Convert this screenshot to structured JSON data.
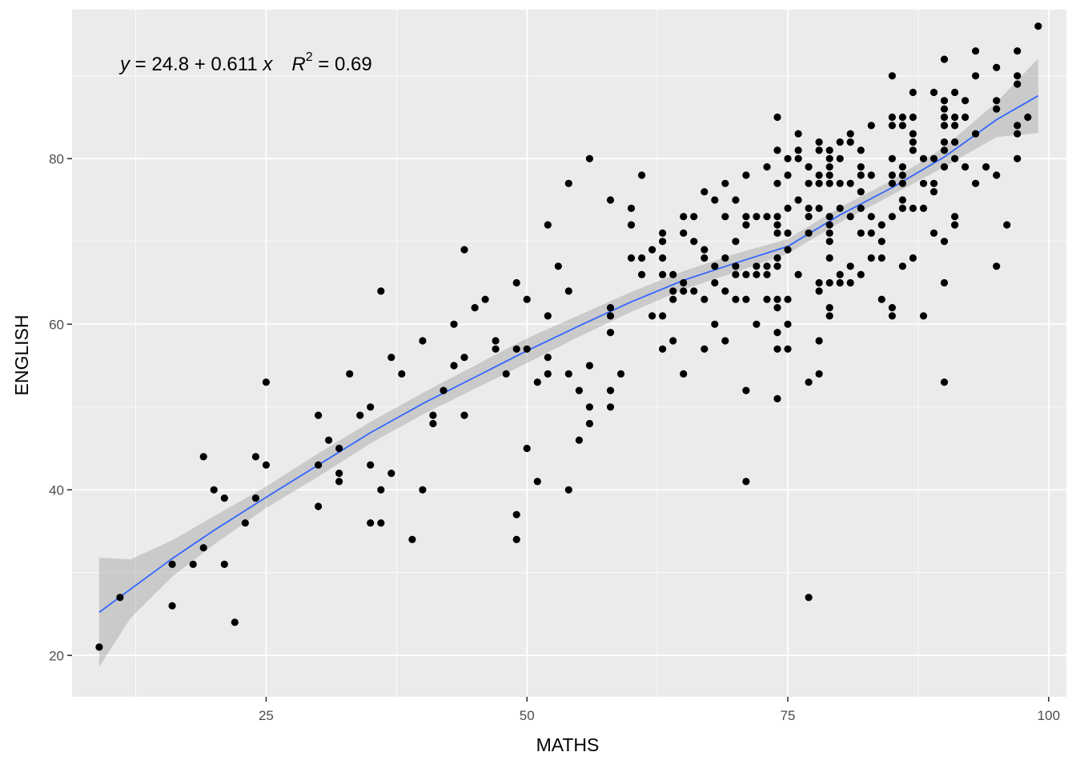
{
  "chart_data": {
    "type": "scatter",
    "xlabel": "MATHS",
    "ylabel": "ENGLISH",
    "xlim": [
      6.4,
      101.7
    ],
    "ylim": [
      15,
      98
    ],
    "x_ticks": [
      25,
      50,
      75,
      100
    ],
    "y_ticks": [
      20,
      40,
      60,
      80
    ],
    "grid": true,
    "annotation": {
      "parts": [
        "y",
        " = 24.8 + 0.611 ",
        "x",
        "R",
        "2",
        " = 0.69"
      ]
    },
    "colors": {
      "panel": "#ebebeb",
      "grid": "#ffffff",
      "points": "#000000",
      "line": "#3366ff",
      "band": "#999999"
    },
    "points": [
      [
        9,
        21
      ],
      [
        11,
        27
      ],
      [
        16,
        31
      ],
      [
        16,
        26
      ],
      [
        18,
        31
      ],
      [
        19,
        44
      ],
      [
        19,
        33
      ],
      [
        20,
        40
      ],
      [
        21,
        39
      ],
      [
        21,
        31
      ],
      [
        22,
        24
      ],
      [
        23,
        36
      ],
      [
        24,
        44
      ],
      [
        24,
        39
      ],
      [
        25,
        43
      ],
      [
        25,
        53
      ],
      [
        30,
        49
      ],
      [
        30,
        43
      ],
      [
        30,
        38
      ],
      [
        31,
        46
      ],
      [
        32,
        45
      ],
      [
        32,
        42
      ],
      [
        32,
        41
      ],
      [
        33,
        54
      ],
      [
        34,
        49
      ],
      [
        35,
        50
      ],
      [
        35,
        43
      ],
      [
        35,
        36
      ],
      [
        36,
        64
      ],
      [
        36,
        40
      ],
      [
        36,
        36
      ],
      [
        37,
        56
      ],
      [
        37,
        42
      ],
      [
        38,
        54
      ],
      [
        39,
        34
      ],
      [
        40,
        58
      ],
      [
        40,
        40
      ],
      [
        41,
        49
      ],
      [
        41,
        48
      ],
      [
        42,
        52
      ],
      [
        43,
        60
      ],
      [
        43,
        55
      ],
      [
        44,
        69
      ],
      [
        44,
        56
      ],
      [
        44,
        49
      ],
      [
        45,
        62
      ],
      [
        46,
        63
      ],
      [
        47,
        58
      ],
      [
        47,
        57
      ],
      [
        48,
        54
      ],
      [
        49,
        65
      ],
      [
        49,
        57
      ],
      [
        49,
        37
      ],
      [
        49,
        34
      ],
      [
        50,
        63
      ],
      [
        50,
        57
      ],
      [
        50,
        45
      ],
      [
        51,
        53
      ],
      [
        51,
        41
      ],
      [
        52,
        72
      ],
      [
        52,
        61
      ],
      [
        52,
        56
      ],
      [
        52,
        54
      ],
      [
        53,
        67
      ],
      [
        54,
        77
      ],
      [
        54,
        64
      ],
      [
        54,
        54
      ],
      [
        54,
        40
      ],
      [
        55,
        52
      ],
      [
        55,
        46
      ],
      [
        56,
        80
      ],
      [
        56,
        55
      ],
      [
        56,
        50
      ],
      [
        56,
        48
      ],
      [
        58,
        75
      ],
      [
        58,
        62
      ],
      [
        58,
        61
      ],
      [
        58,
        59
      ],
      [
        58,
        52
      ],
      [
        58,
        50
      ],
      [
        59,
        54
      ],
      [
        60,
        74
      ],
      [
        60,
        72
      ],
      [
        60,
        68
      ],
      [
        61,
        78
      ],
      [
        61,
        68
      ],
      [
        61,
        66
      ],
      [
        62,
        69
      ],
      [
        62,
        61
      ],
      [
        63,
        71
      ],
      [
        63,
        70
      ],
      [
        63,
        68
      ],
      [
        63,
        66
      ],
      [
        63,
        61
      ],
      [
        63,
        57
      ],
      [
        64,
        66
      ],
      [
        64,
        64
      ],
      [
        64,
        63
      ],
      [
        64,
        58
      ],
      [
        65,
        73
      ],
      [
        65,
        71
      ],
      [
        65,
        65
      ],
      [
        65,
        64
      ],
      [
        65,
        54
      ],
      [
        66,
        73
      ],
      [
        66,
        70
      ],
      [
        66,
        64
      ],
      [
        67,
        76
      ],
      [
        67,
        69
      ],
      [
        67,
        68
      ],
      [
        67,
        63
      ],
      [
        67,
        57
      ],
      [
        68,
        75
      ],
      [
        68,
        67
      ],
      [
        68,
        65
      ],
      [
        68,
        60
      ],
      [
        69,
        77
      ],
      [
        69,
        73
      ],
      [
        69,
        68
      ],
      [
        69,
        64
      ],
      [
        69,
        58
      ],
      [
        70,
        75
      ],
      [
        70,
        70
      ],
      [
        70,
        67
      ],
      [
        70,
        66
      ],
      [
        70,
        63
      ],
      [
        71,
        78
      ],
      [
        71,
        73
      ],
      [
        71,
        72
      ],
      [
        71,
        66
      ],
      [
        71,
        63
      ],
      [
        71,
        52
      ],
      [
        71,
        41
      ],
      [
        72,
        73
      ],
      [
        72,
        67
      ],
      [
        72,
        66
      ],
      [
        72,
        60
      ],
      [
        73,
        79
      ],
      [
        73,
        73
      ],
      [
        73,
        67
      ],
      [
        73,
        66
      ],
      [
        73,
        63
      ],
      [
        74,
        85
      ],
      [
        74,
        81
      ],
      [
        74,
        77
      ],
      [
        74,
        73
      ],
      [
        74,
        72
      ],
      [
        74,
        71
      ],
      [
        74,
        68
      ],
      [
        74,
        67
      ],
      [
        74,
        63
      ],
      [
        74,
        62
      ],
      [
        74,
        59
      ],
      [
        74,
        57
      ],
      [
        74,
        51
      ],
      [
        75,
        80
      ],
      [
        75,
        78
      ],
      [
        75,
        74
      ],
      [
        75,
        71
      ],
      [
        75,
        69
      ],
      [
        75,
        63
      ],
      [
        75,
        60
      ],
      [
        75,
        57
      ],
      [
        76,
        83
      ],
      [
        76,
        81
      ],
      [
        76,
        80
      ],
      [
        76,
        75
      ],
      [
        76,
        66
      ],
      [
        77,
        79
      ],
      [
        77,
        77
      ],
      [
        77,
        74
      ],
      [
        77,
        73
      ],
      [
        77,
        71
      ],
      [
        77,
        53
      ],
      [
        77,
        27
      ],
      [
        78,
        82
      ],
      [
        78,
        81
      ],
      [
        78,
        78
      ],
      [
        78,
        77
      ],
      [
        78,
        74
      ],
      [
        78,
        65
      ],
      [
        78,
        64
      ],
      [
        78,
        58
      ],
      [
        78,
        54
      ],
      [
        79,
        81
      ],
      [
        79,
        80
      ],
      [
        79,
        79
      ],
      [
        79,
        78
      ],
      [
        79,
        77
      ],
      [
        79,
        73
      ],
      [
        79,
        72
      ],
      [
        79,
        71
      ],
      [
        79,
        70
      ],
      [
        79,
        68
      ],
      [
        79,
        65
      ],
      [
        79,
        62
      ],
      [
        79,
        61
      ],
      [
        80,
        82
      ],
      [
        80,
        80
      ],
      [
        80,
        77
      ],
      [
        80,
        74
      ],
      [
        80,
        66
      ],
      [
        80,
        65
      ],
      [
        81,
        83
      ],
      [
        81,
        82
      ],
      [
        81,
        77
      ],
      [
        81,
        73
      ],
      [
        81,
        67
      ],
      [
        81,
        65
      ],
      [
        82,
        81
      ],
      [
        82,
        79
      ],
      [
        82,
        78
      ],
      [
        82,
        76
      ],
      [
        82,
        74
      ],
      [
        82,
        71
      ],
      [
        82,
        66
      ],
      [
        83,
        84
      ],
      [
        83,
        78
      ],
      [
        83,
        73
      ],
      [
        83,
        71
      ],
      [
        83,
        68
      ],
      [
        84,
        72
      ],
      [
        84,
        70
      ],
      [
        84,
        68
      ],
      [
        84,
        63
      ],
      [
        85,
        90
      ],
      [
        85,
        85
      ],
      [
        85,
        84
      ],
      [
        85,
        80
      ],
      [
        85,
        78
      ],
      [
        85,
        77
      ],
      [
        85,
        73
      ],
      [
        85,
        62
      ],
      [
        85,
        61
      ],
      [
        86,
        85
      ],
      [
        86,
        84
      ],
      [
        86,
        79
      ],
      [
        86,
        78
      ],
      [
        86,
        77
      ],
      [
        86,
        75
      ],
      [
        86,
        74
      ],
      [
        86,
        67
      ],
      [
        87,
        88
      ],
      [
        87,
        85
      ],
      [
        87,
        83
      ],
      [
        87,
        82
      ],
      [
        87,
        81
      ],
      [
        87,
        74
      ],
      [
        87,
        68
      ],
      [
        88,
        80
      ],
      [
        88,
        77
      ],
      [
        88,
        74
      ],
      [
        88,
        61
      ],
      [
        89,
        88
      ],
      [
        89,
        80
      ],
      [
        89,
        77
      ],
      [
        89,
        76
      ],
      [
        89,
        71
      ],
      [
        90,
        92
      ],
      [
        90,
        87
      ],
      [
        90,
        86
      ],
      [
        90,
        85
      ],
      [
        90,
        84
      ],
      [
        90,
        82
      ],
      [
        90,
        81
      ],
      [
        90,
        79
      ],
      [
        90,
        70
      ],
      [
        90,
        65
      ],
      [
        90,
        53
      ],
      [
        91,
        88
      ],
      [
        91,
        85
      ],
      [
        91,
        84
      ],
      [
        91,
        82
      ],
      [
        91,
        80
      ],
      [
        91,
        73
      ],
      [
        91,
        72
      ],
      [
        92,
        87
      ],
      [
        92,
        85
      ],
      [
        92,
        79
      ],
      [
        93,
        93
      ],
      [
        93,
        90
      ],
      [
        93,
        83
      ],
      [
        93,
        77
      ],
      [
        94,
        79
      ],
      [
        95,
        91
      ],
      [
        95,
        87
      ],
      [
        95,
        86
      ],
      [
        95,
        78
      ],
      [
        95,
        67
      ],
      [
        96,
        72
      ],
      [
        97,
        93
      ],
      [
        97,
        90
      ],
      [
        97,
        89
      ],
      [
        97,
        84
      ],
      [
        97,
        83
      ],
      [
        97,
        80
      ],
      [
        98,
        85
      ],
      [
        99,
        96
      ]
    ],
    "smooth": {
      "x": [
        9,
        12,
        16,
        20,
        25,
        30,
        35,
        40,
        45,
        50,
        55,
        60,
        65,
        70,
        75,
        80,
        85,
        90,
        95,
        99
      ],
      "y": [
        25.2,
        28.0,
        31.7,
        35.1,
        39.1,
        43.0,
        46.9,
        50.4,
        53.6,
        56.8,
        59.8,
        62.7,
        65.3,
        67.4,
        69.4,
        73.2,
        76.5,
        80.2,
        84.7,
        87.6
      ],
      "lower": [
        18.6,
        24.5,
        29.5,
        33.4,
        37.8,
        41.6,
        45.6,
        49.1,
        52.2,
        55.3,
        58.5,
        61.5,
        64.2,
        66.3,
        68.5,
        72.3,
        75.6,
        79.0,
        82.6,
        83.1
      ],
      "upper": [
        31.8,
        31.6,
        33.9,
        36.8,
        40.4,
        44.4,
        48.2,
        51.7,
        55.0,
        58.3,
        61.1,
        63.9,
        66.4,
        68.5,
        70.3,
        74.1,
        77.4,
        81.4,
        86.8,
        92.1
      ]
    }
  }
}
